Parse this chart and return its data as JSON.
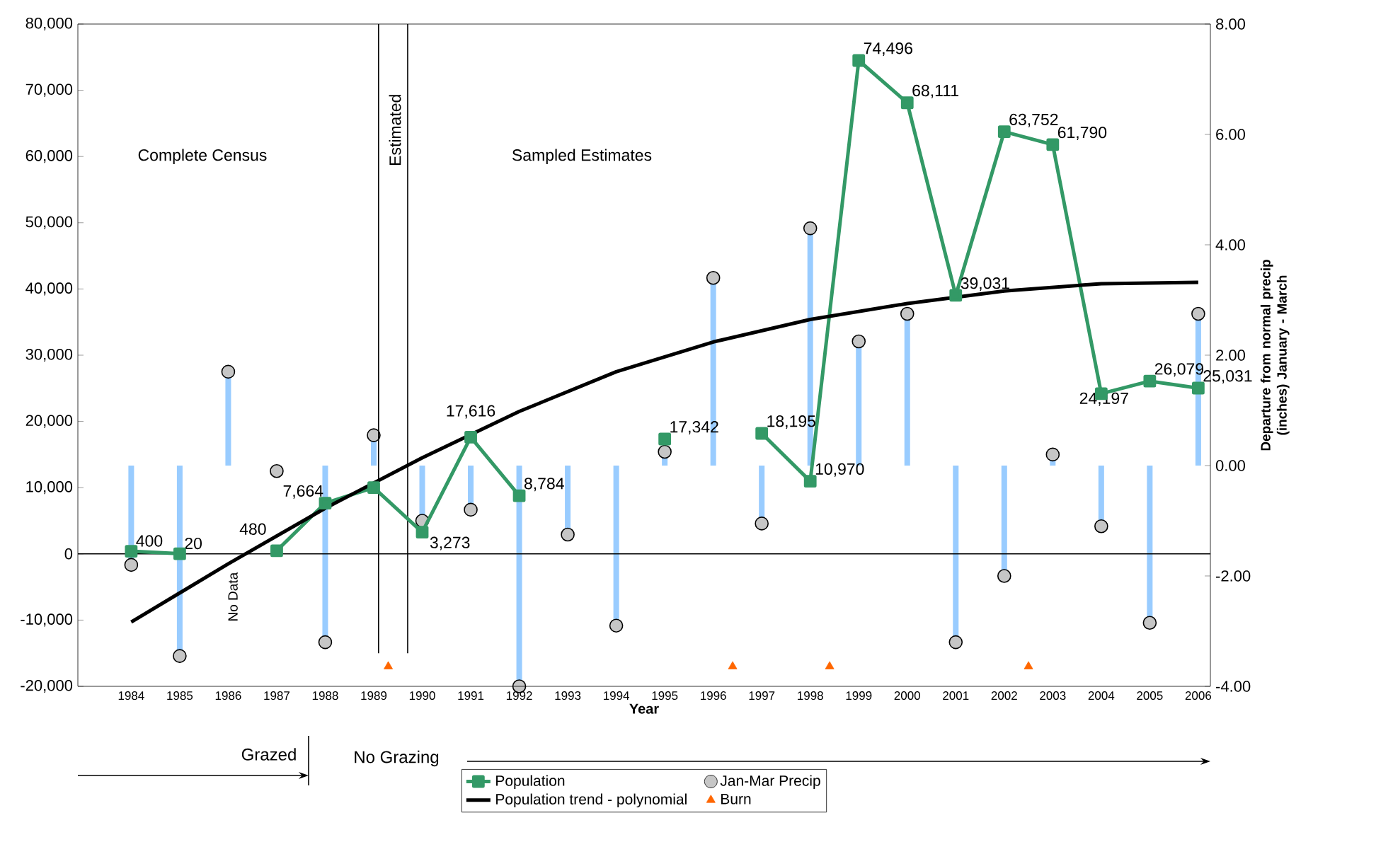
{
  "chart_data": {
    "type": "line",
    "xlabel": "Year",
    "y2label": "Departure from normal precip (inches) January - March",
    "x": [
      1984,
      1985,
      1986,
      1987,
      1988,
      1989,
      1990,
      1991,
      1992,
      1993,
      1994,
      1995,
      1996,
      1997,
      1998,
      1999,
      2000,
      2001,
      2002,
      2003,
      2004,
      2005,
      2006
    ],
    "xlim": [
      1982.9,
      2006.25
    ],
    "xticks": [
      1984,
      1985,
      1986,
      1987,
      1988,
      1989,
      1990,
      1991,
      1992,
      1993,
      1994,
      1995,
      1996,
      1997,
      1998,
      1999,
      2000,
      2001,
      2002,
      2003,
      2004,
      2005,
      2006
    ],
    "ylim": [
      -20000,
      80000
    ],
    "yticks": [
      {
        "value": -20000,
        "label": "-20,000"
      },
      {
        "value": -10000,
        "label": "-10,000"
      },
      {
        "value": 0,
        "label": "0"
      },
      {
        "value": 10000,
        "label": "10,000"
      },
      {
        "value": 20000,
        "label": "20,000"
      },
      {
        "value": 30000,
        "label": "30,000"
      },
      {
        "value": 40000,
        "label": "40,000"
      },
      {
        "value": 50000,
        "label": "50,000"
      },
      {
        "value": 60000,
        "label": "60,000"
      },
      {
        "value": 70000,
        "label": "70,000"
      },
      {
        "value": 80000,
        "label": "80,000"
      }
    ],
    "y2lim": [
      -4,
      8
    ],
    "y2ticks": [
      {
        "value": -4,
        "label": "-4.00"
      },
      {
        "value": -2,
        "label": "-2.00"
      },
      {
        "value": 0,
        "label": "0.00"
      },
      {
        "value": 2,
        "label": "2.00"
      },
      {
        "value": 4,
        "label": "4.00"
      },
      {
        "value": 6,
        "label": "6.00"
      },
      {
        "value": 8,
        "label": "8.00"
      }
    ],
    "series": [
      {
        "name": "Population",
        "color": "#339966",
        "marker": "square",
        "values": [
          400,
          20,
          null,
          480,
          7664,
          10000,
          3273,
          17616,
          8784,
          null,
          null,
          17342,
          null,
          18195,
          10970,
          74496,
          68111,
          39031,
          63752,
          61790,
          24197,
          26079,
          25031
        ],
        "value_labels": [
          "400",
          "20",
          null,
          "480",
          "7,664",
          null,
          "3,273",
          "17,616",
          "8,784",
          null,
          null,
          "17,342",
          null,
          "18,195",
          "10,970",
          "74,496",
          "68,111",
          "39,031",
          "63,752",
          "61,790",
          "24,197",
          "26,079",
          "25,031"
        ]
      },
      {
        "name": "Jan-Mar Precip",
        "type": "lollipop",
        "axis": "y2",
        "color": "#c6c6c6",
        "marker": "circle",
        "values": [
          -1.8,
          -3.45,
          1.7,
          -0.1,
          -3.2,
          0.55,
          -1.0,
          -0.8,
          -4.0,
          -1.25,
          -2.9,
          0.25,
          3.4,
          -1.05,
          4.3,
          2.25,
          2.75,
          -3.2,
          -2.0,
          0.2,
          -1.1,
          -2.85,
          2.75
        ]
      },
      {
        "name": "Population trend - polynomial",
        "color": "#000000",
        "marker": "none",
        "x": [
          1984,
          1986,
          1988,
          1990,
          1992,
          1994,
          1996,
          1998,
          2000,
          2002,
          2004,
          2006
        ],
        "values": [
          -10300,
          -1500,
          6900,
          14500,
          21500,
          27500,
          32000,
          35400,
          37800,
          39700,
          40800,
          41000
        ]
      },
      {
        "name": "Burn",
        "type": "scatter",
        "color": "#ff6600",
        "marker": "triangle",
        "x": [
          1989.3,
          1996.4,
          1998.4,
          2002.5
        ],
        "values": [
          -17000,
          -17000,
          -17000,
          -17000
        ]
      }
    ],
    "ref_lines": [
      {
        "axis": "x",
        "value": 1989.1,
        "color": "#000000"
      },
      {
        "axis": "x",
        "value": 1989.7,
        "color": "#000000"
      }
    ],
    "annotations": [
      "Complete Census",
      "Estimated",
      "Sampled Estimates",
      "No Data",
      "Grazed",
      "No Grazing"
    ],
    "legend": "bottom"
  }
}
